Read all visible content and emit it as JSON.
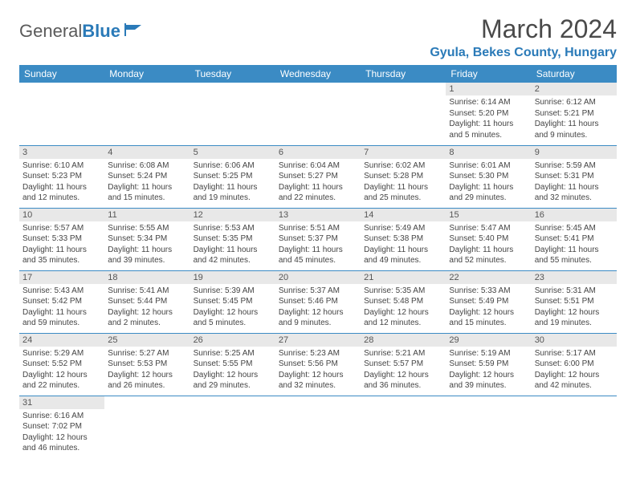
{
  "logo": {
    "word1": "General",
    "word2": "Blue"
  },
  "title": "March 2024",
  "location": "Gyula, Bekes County, Hungary",
  "colors": {
    "header_bg": "#3b8bc4",
    "header_text": "#ffffff",
    "accent": "#2a7ab8",
    "daynum_bg": "#e8e8e8",
    "body_text": "#444444",
    "page_bg": "#ffffff"
  },
  "fonts": {
    "title_size": 32,
    "location_size": 16,
    "dayhead_size": 12,
    "daynum_size": 11,
    "body_size": 10
  },
  "days": [
    "Sunday",
    "Monday",
    "Tuesday",
    "Wednesday",
    "Thursday",
    "Friday",
    "Saturday"
  ],
  "weeks": [
    [
      null,
      null,
      null,
      null,
      null,
      {
        "n": "1",
        "sr": "Sunrise: 6:14 AM",
        "ss": "Sunset: 5:20 PM",
        "dl": "Daylight: 11 hours and 5 minutes."
      },
      {
        "n": "2",
        "sr": "Sunrise: 6:12 AM",
        "ss": "Sunset: 5:21 PM",
        "dl": "Daylight: 11 hours and 9 minutes."
      }
    ],
    [
      {
        "n": "3",
        "sr": "Sunrise: 6:10 AM",
        "ss": "Sunset: 5:23 PM",
        "dl": "Daylight: 11 hours and 12 minutes."
      },
      {
        "n": "4",
        "sr": "Sunrise: 6:08 AM",
        "ss": "Sunset: 5:24 PM",
        "dl": "Daylight: 11 hours and 15 minutes."
      },
      {
        "n": "5",
        "sr": "Sunrise: 6:06 AM",
        "ss": "Sunset: 5:25 PM",
        "dl": "Daylight: 11 hours and 19 minutes."
      },
      {
        "n": "6",
        "sr": "Sunrise: 6:04 AM",
        "ss": "Sunset: 5:27 PM",
        "dl": "Daylight: 11 hours and 22 minutes."
      },
      {
        "n": "7",
        "sr": "Sunrise: 6:02 AM",
        "ss": "Sunset: 5:28 PM",
        "dl": "Daylight: 11 hours and 25 minutes."
      },
      {
        "n": "8",
        "sr": "Sunrise: 6:01 AM",
        "ss": "Sunset: 5:30 PM",
        "dl": "Daylight: 11 hours and 29 minutes."
      },
      {
        "n": "9",
        "sr": "Sunrise: 5:59 AM",
        "ss": "Sunset: 5:31 PM",
        "dl": "Daylight: 11 hours and 32 minutes."
      }
    ],
    [
      {
        "n": "10",
        "sr": "Sunrise: 5:57 AM",
        "ss": "Sunset: 5:33 PM",
        "dl": "Daylight: 11 hours and 35 minutes."
      },
      {
        "n": "11",
        "sr": "Sunrise: 5:55 AM",
        "ss": "Sunset: 5:34 PM",
        "dl": "Daylight: 11 hours and 39 minutes."
      },
      {
        "n": "12",
        "sr": "Sunrise: 5:53 AM",
        "ss": "Sunset: 5:35 PM",
        "dl": "Daylight: 11 hours and 42 minutes."
      },
      {
        "n": "13",
        "sr": "Sunrise: 5:51 AM",
        "ss": "Sunset: 5:37 PM",
        "dl": "Daylight: 11 hours and 45 minutes."
      },
      {
        "n": "14",
        "sr": "Sunrise: 5:49 AM",
        "ss": "Sunset: 5:38 PM",
        "dl": "Daylight: 11 hours and 49 minutes."
      },
      {
        "n": "15",
        "sr": "Sunrise: 5:47 AM",
        "ss": "Sunset: 5:40 PM",
        "dl": "Daylight: 11 hours and 52 minutes."
      },
      {
        "n": "16",
        "sr": "Sunrise: 5:45 AM",
        "ss": "Sunset: 5:41 PM",
        "dl": "Daylight: 11 hours and 55 minutes."
      }
    ],
    [
      {
        "n": "17",
        "sr": "Sunrise: 5:43 AM",
        "ss": "Sunset: 5:42 PM",
        "dl": "Daylight: 11 hours and 59 minutes."
      },
      {
        "n": "18",
        "sr": "Sunrise: 5:41 AM",
        "ss": "Sunset: 5:44 PM",
        "dl": "Daylight: 12 hours and 2 minutes."
      },
      {
        "n": "19",
        "sr": "Sunrise: 5:39 AM",
        "ss": "Sunset: 5:45 PM",
        "dl": "Daylight: 12 hours and 5 minutes."
      },
      {
        "n": "20",
        "sr": "Sunrise: 5:37 AM",
        "ss": "Sunset: 5:46 PM",
        "dl": "Daylight: 12 hours and 9 minutes."
      },
      {
        "n": "21",
        "sr": "Sunrise: 5:35 AM",
        "ss": "Sunset: 5:48 PM",
        "dl": "Daylight: 12 hours and 12 minutes."
      },
      {
        "n": "22",
        "sr": "Sunrise: 5:33 AM",
        "ss": "Sunset: 5:49 PM",
        "dl": "Daylight: 12 hours and 15 minutes."
      },
      {
        "n": "23",
        "sr": "Sunrise: 5:31 AM",
        "ss": "Sunset: 5:51 PM",
        "dl": "Daylight: 12 hours and 19 minutes."
      }
    ],
    [
      {
        "n": "24",
        "sr": "Sunrise: 5:29 AM",
        "ss": "Sunset: 5:52 PM",
        "dl": "Daylight: 12 hours and 22 minutes."
      },
      {
        "n": "25",
        "sr": "Sunrise: 5:27 AM",
        "ss": "Sunset: 5:53 PM",
        "dl": "Daylight: 12 hours and 26 minutes."
      },
      {
        "n": "26",
        "sr": "Sunrise: 5:25 AM",
        "ss": "Sunset: 5:55 PM",
        "dl": "Daylight: 12 hours and 29 minutes."
      },
      {
        "n": "27",
        "sr": "Sunrise: 5:23 AM",
        "ss": "Sunset: 5:56 PM",
        "dl": "Daylight: 12 hours and 32 minutes."
      },
      {
        "n": "28",
        "sr": "Sunrise: 5:21 AM",
        "ss": "Sunset: 5:57 PM",
        "dl": "Daylight: 12 hours and 36 minutes."
      },
      {
        "n": "29",
        "sr": "Sunrise: 5:19 AM",
        "ss": "Sunset: 5:59 PM",
        "dl": "Daylight: 12 hours and 39 minutes."
      },
      {
        "n": "30",
        "sr": "Sunrise: 5:17 AM",
        "ss": "Sunset: 6:00 PM",
        "dl": "Daylight: 12 hours and 42 minutes."
      }
    ],
    [
      {
        "n": "31",
        "sr": "Sunrise: 6:16 AM",
        "ss": "Sunset: 7:02 PM",
        "dl": "Daylight: 12 hours and 46 minutes."
      },
      null,
      null,
      null,
      null,
      null,
      null
    ]
  ]
}
